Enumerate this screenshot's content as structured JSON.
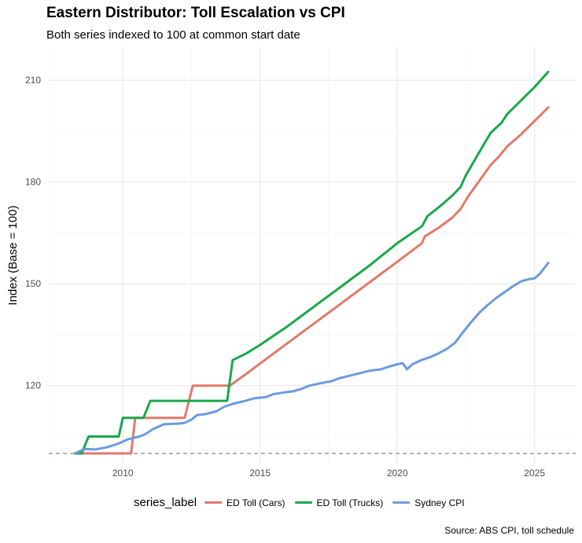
{
  "chart_data": {
    "type": "line",
    "title": "Eastern Distributor: Toll Escalation vs CPI",
    "subtitle": "Both series indexed to 100 at common start date",
    "ylabel": "Index (Base = 100)",
    "xlabel": "",
    "xlim": [
      2007.3,
      2026.5
    ],
    "ylim": [
      97,
      220
    ],
    "x_ticks": [
      2010,
      2015,
      2020,
      2025
    ],
    "y_ticks": [
      120,
      150,
      180,
      210
    ],
    "reference_line": 100,
    "legend_title": "series_label",
    "legend_position": "bottom",
    "caption": "Source: ABS CPI, toll schedule",
    "series": [
      {
        "name": "ED Toll (Cars)",
        "color": "#e07a6c",
        "points": [
          [
            2008.25,
            100
          ],
          [
            2010.3,
            100
          ],
          [
            2010.45,
            110.5
          ],
          [
            2012.25,
            110.5
          ],
          [
            2012.55,
            120
          ],
          [
            2013.9,
            120
          ],
          [
            2014.5,
            123.5
          ],
          [
            2015,
            126.5
          ],
          [
            2016,
            132.5
          ],
          [
            2017,
            138.5
          ],
          [
            2018,
            144.5
          ],
          [
            2019,
            150.5
          ],
          [
            2020,
            156.5
          ],
          [
            2020.9,
            162
          ],
          [
            2021,
            164
          ],
          [
            2021.5,
            166.5
          ],
          [
            2022,
            169.5
          ],
          [
            2022.3,
            172
          ],
          [
            2022.6,
            176
          ],
          [
            2023,
            180.5
          ],
          [
            2023.4,
            185
          ],
          [
            2023.7,
            187.5
          ],
          [
            2024,
            190.5
          ],
          [
            2024.5,
            194
          ],
          [
            2025,
            198
          ],
          [
            2025.5,
            202
          ]
        ]
      },
      {
        "name": "ED Toll (Trucks)",
        "color": "#19a84a",
        "points": [
          [
            2008.25,
            100
          ],
          [
            2008.5,
            100
          ],
          [
            2008.75,
            105
          ],
          [
            2009.85,
            105
          ],
          [
            2010,
            110.5
          ],
          [
            2010.75,
            110.5
          ],
          [
            2011,
            115.5
          ],
          [
            2013.8,
            115.5
          ],
          [
            2014,
            127.5
          ],
          [
            2014.5,
            129.5
          ],
          [
            2015,
            132
          ],
          [
            2016,
            137.5
          ],
          [
            2017,
            143.5
          ],
          [
            2018,
            149.5
          ],
          [
            2019,
            155.5
          ],
          [
            2020,
            162
          ],
          [
            2020.9,
            167
          ],
          [
            2021.1,
            170
          ],
          [
            2021.5,
            172.5
          ],
          [
            2022,
            176
          ],
          [
            2022.3,
            178.5
          ],
          [
            2022.5,
            182
          ],
          [
            2023,
            189
          ],
          [
            2023.4,
            194.5
          ],
          [
            2023.8,
            197.5
          ],
          [
            2024,
            200
          ],
          [
            2024.5,
            204
          ],
          [
            2025,
            208
          ],
          [
            2025.5,
            212.5
          ]
        ]
      },
      {
        "name": "Sydney CPI",
        "color": "#6b9be0",
        "points": [
          [
            2008.25,
            100
          ],
          [
            2008.6,
            101.3
          ],
          [
            2009,
            101.2
          ],
          [
            2009.4,
            101.8
          ],
          [
            2009.8,
            102.8
          ],
          [
            2010.2,
            104.2
          ],
          [
            2010.6,
            105
          ],
          [
            2010.8,
            105.6
          ],
          [
            2011.1,
            107.2
          ],
          [
            2011.5,
            108.6
          ],
          [
            2012,
            108.8
          ],
          [
            2012.25,
            109
          ],
          [
            2012.5,
            110
          ],
          [
            2012.7,
            111.3
          ],
          [
            2013,
            111.6
          ],
          [
            2013.4,
            112.4
          ],
          [
            2013.7,
            113.8
          ],
          [
            2014,
            114.6
          ],
          [
            2014.5,
            115.6
          ],
          [
            2014.8,
            116.3
          ],
          [
            2015.2,
            116.6
          ],
          [
            2015.5,
            117.5
          ],
          [
            2015.9,
            118
          ],
          [
            2016.2,
            118.3
          ],
          [
            2016.5,
            119
          ],
          [
            2016.8,
            120
          ],
          [
            2017.2,
            120.7
          ],
          [
            2017.6,
            121.3
          ],
          [
            2017.9,
            122.2
          ],
          [
            2018.3,
            123
          ],
          [
            2018.6,
            123.6
          ],
          [
            2019,
            124.4
          ],
          [
            2019.4,
            124.8
          ],
          [
            2019.7,
            125.6
          ],
          [
            2020,
            126.3
          ],
          [
            2020.2,
            126.6
          ],
          [
            2020.35,
            124.8
          ],
          [
            2020.55,
            126.3
          ],
          [
            2020.9,
            127.6
          ],
          [
            2021.2,
            128.4
          ],
          [
            2021.5,
            129.5
          ],
          [
            2021.8,
            130.8
          ],
          [
            2022.1,
            132.6
          ],
          [
            2022.4,
            135.8
          ],
          [
            2022.7,
            138.8
          ],
          [
            2023,
            141.6
          ],
          [
            2023.3,
            143.8
          ],
          [
            2023.6,
            145.8
          ],
          [
            2023.9,
            147.5
          ],
          [
            2024.2,
            149.2
          ],
          [
            2024.5,
            150.7
          ],
          [
            2024.8,
            151.4
          ],
          [
            2025,
            151.6
          ],
          [
            2025.2,
            153
          ],
          [
            2025.5,
            156.2
          ]
        ]
      }
    ]
  }
}
